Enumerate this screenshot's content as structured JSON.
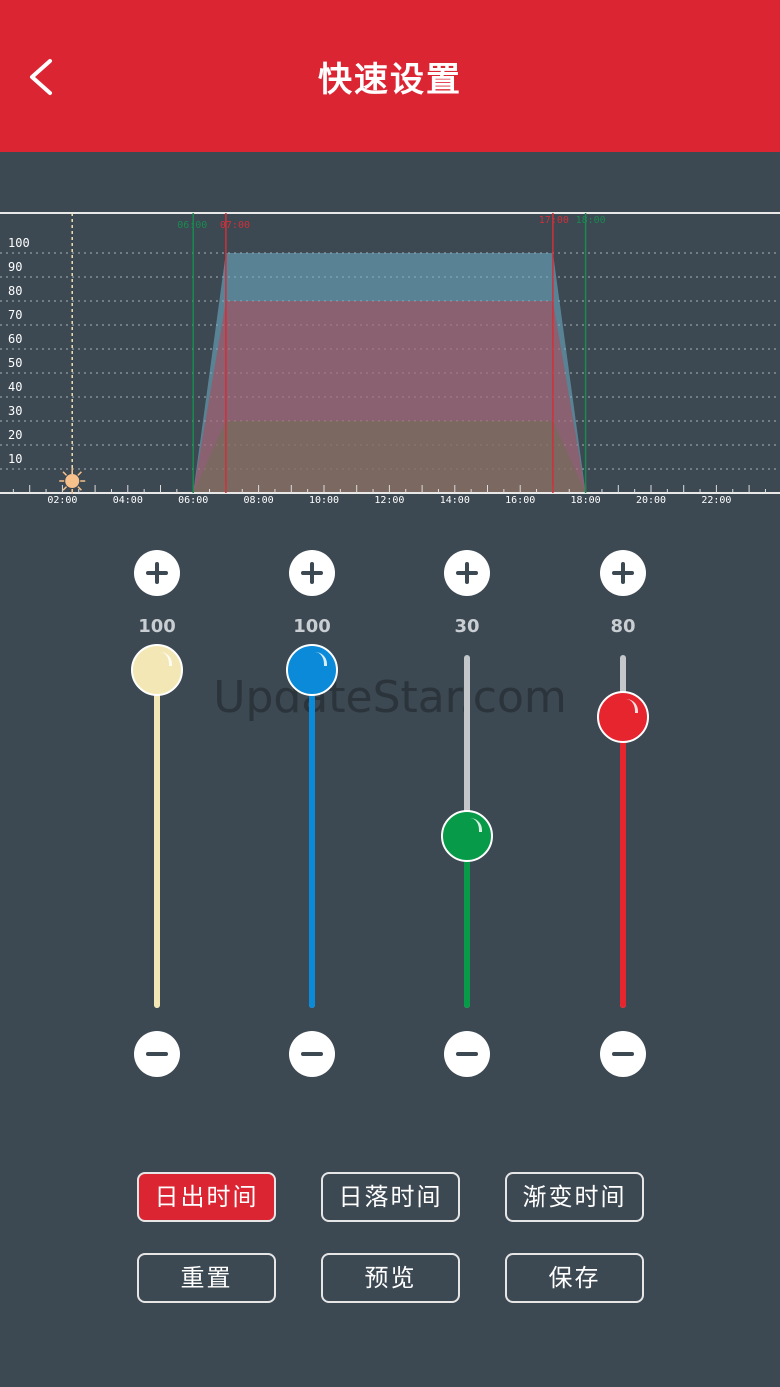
{
  "header": {
    "title": "快速设置",
    "back_icon": "chevron-left-icon"
  },
  "chart_data": {
    "type": "area",
    "y_ticks": [
      "10",
      "20",
      "30",
      "40",
      "50",
      "60",
      "70",
      "80",
      "90",
      "100"
    ],
    "x_ticks": [
      "02:00",
      "04:00",
      "06:00",
      "08:00",
      "10:00",
      "12:00",
      "14:00",
      "16:00",
      "18:00",
      "20:00",
      "22:00"
    ],
    "ylim": [
      0,
      100
    ],
    "xlim_hours": [
      0,
      24
    ],
    "grid": true,
    "sunrise": {
      "start": "06:00",
      "end": "07:00",
      "start_hour": 6,
      "end_hour": 7
    },
    "sunset": {
      "start": "17:00",
      "end": "18:00",
      "start_hour": 17,
      "end_hour": 18
    },
    "current_time_hour": 2.3,
    "current_marker_icon": "sun-icon",
    "series": [
      {
        "values_plateau": 100,
        "color": "#f3e8b5"
      },
      {
        "values_plateau": 100,
        "color": "#1a8ad4"
      },
      {
        "values_plateau": 30,
        "color": "#18a050"
      },
      {
        "values_plateau": 80,
        "color": "#e6252e"
      }
    ]
  },
  "sliders": [
    {
      "value": 100,
      "color": "#f3e8b5",
      "track": "#f3e8b5"
    },
    {
      "value": 100,
      "color": "#0a8ad8",
      "track": "#0a8ad8"
    },
    {
      "value": 30,
      "color": "#079a48",
      "track": "#079a48"
    },
    {
      "value": 80,
      "color": "#e6252e",
      "track": "#e6252e"
    }
  ],
  "buttons": {
    "sunrise": "日出时间",
    "sunset": "日落时间",
    "fade": "渐变时间",
    "reset": "重置",
    "preview": "预览",
    "save": "保存"
  },
  "watermark": "UpdateStar.com"
}
